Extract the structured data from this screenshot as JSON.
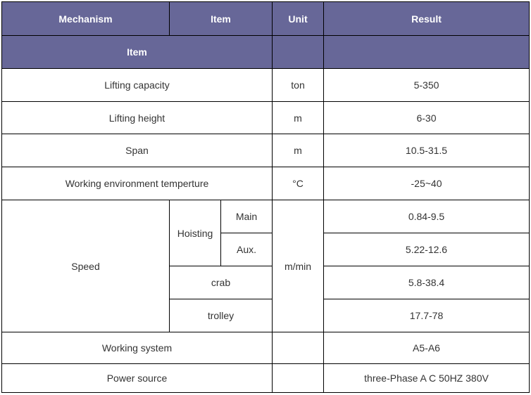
{
  "header": {
    "mechanism": "Mechanism",
    "item": "Item",
    "unit": "Unit",
    "result": "Result",
    "subheader_item": "Item"
  },
  "rows": [
    {
      "item": "Lifting capacity",
      "unit": "ton",
      "result": "5-350"
    },
    {
      "item": "Lifting height",
      "unit": "m",
      "result": "6-30"
    },
    {
      "item": "Span",
      "unit": "m",
      "result": "10.5-31.5"
    },
    {
      "item": "Working environment temperture",
      "unit": "°C",
      "result": "-25~40"
    }
  ],
  "speed": {
    "label": "Speed",
    "unit": "m/min",
    "hoisting": "Hoisting",
    "main": "Main",
    "main_result": "0.84-9.5",
    "aux": "Aux.",
    "aux_result": "5.22-12.6",
    "crab": "crab",
    "crab_result": "5.8-38.4",
    "trolley": "trolley",
    "trolley_result": "17.7-78"
  },
  "footer_rows": [
    {
      "item": "Working system",
      "unit": "",
      "result": "A5-A6"
    },
    {
      "item": "Power source",
      "unit": "",
      "result": "three-Phase A C 50HZ 380V"
    }
  ],
  "colors": {
    "header_bg": "#676798",
    "header_text": "#ffffff",
    "border": "#000000"
  }
}
